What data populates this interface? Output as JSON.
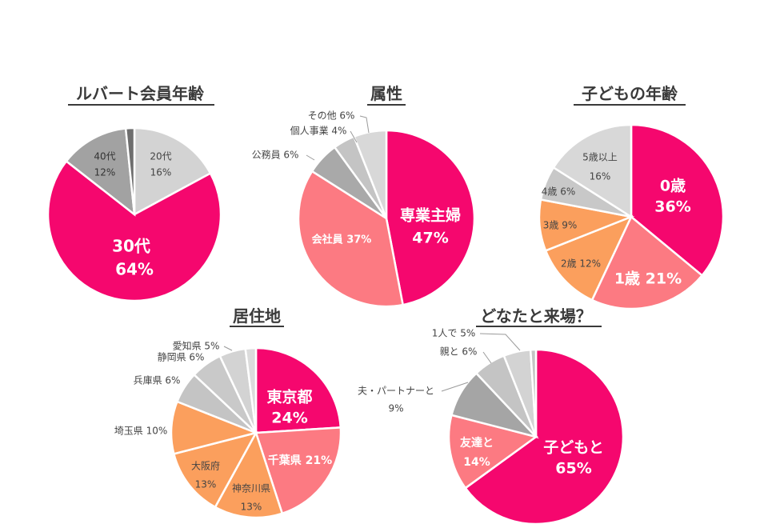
{
  "chart_data": [
    {
      "type": "pie",
      "title": "ルバート会員年齢",
      "slices": [
        {
          "label": "20代",
          "value": 16,
          "display": "16%",
          "color": "#d3d3d3"
        },
        {
          "label": "30代",
          "value": 64,
          "display": "64%",
          "color": "#f5076e"
        },
        {
          "label": "40代",
          "value": 12,
          "display": "12%",
          "color": "#a2a2a2"
        },
        {
          "label": "",
          "value": 1.5,
          "display": "",
          "color": "#6e6e6e"
        }
      ]
    },
    {
      "type": "pie",
      "title": "属性",
      "slices": [
        {
          "label": "専業主婦",
          "value": 47,
          "display": "47%",
          "color": "#f5076e"
        },
        {
          "label": "会社員",
          "value": 37,
          "display": "37%",
          "color": "#fc7a82"
        },
        {
          "label": "公務員",
          "value": 6,
          "display": "6%",
          "color": "#a9a9a9"
        },
        {
          "label": "個人事業",
          "value": 4,
          "display": "4%",
          "color": "#c4c4c4"
        },
        {
          "label": "その他",
          "value": 6,
          "display": "6%",
          "color": "#d8d8d8"
        }
      ]
    },
    {
      "type": "pie",
      "title": "子どもの年齢",
      "slices": [
        {
          "label": "0歳",
          "value": 36,
          "display": "36%",
          "color": "#f5076e"
        },
        {
          "label": "1歳",
          "value": 21,
          "display": "21%",
          "color": "#fc7a82"
        },
        {
          "label": "2歳",
          "value": 12,
          "display": "12%",
          "color": "#fb9f5d"
        },
        {
          "label": "3歳",
          "value": 9,
          "display": "9%",
          "color": "#fb9f5d"
        },
        {
          "label": "4歳",
          "value": 6,
          "display": "6%",
          "color": "#c8c8c8"
        },
        {
          "label": "5歳以上",
          "value": 16,
          "display": "16%",
          "color": "#d8d8d8"
        }
      ]
    },
    {
      "type": "pie",
      "title": "居住地",
      "slices": [
        {
          "label": "東京都",
          "value": 24,
          "display": "24%",
          "color": "#f5076e"
        },
        {
          "label": "千葉県",
          "value": 21,
          "display": "21%",
          "color": "#fc7a82"
        },
        {
          "label": "神奈川県",
          "value": 13,
          "display": "13%",
          "color": "#fb9f5d"
        },
        {
          "label": "大阪府",
          "value": 13,
          "display": "13%",
          "color": "#fb9f5d"
        },
        {
          "label": "埼玉県",
          "value": 10,
          "display": "10%",
          "color": "#fb9f5d"
        },
        {
          "label": "兵庫県",
          "value": 6,
          "display": "6%",
          "color": "#c4c4c4"
        },
        {
          "label": "静岡県",
          "value": 6,
          "display": "6%",
          "color": "#c9c9c9"
        },
        {
          "label": "愛知県",
          "value": 5,
          "display": "5%",
          "color": "#d3d3d3"
        },
        {
          "label": "",
          "value": 2,
          "display": "",
          "color": "#dcdcdc"
        }
      ]
    },
    {
      "type": "pie",
      "title": "どなたと来場？",
      "slices": [
        {
          "label": "子どもと",
          "value": 65,
          "display": "65%",
          "color": "#f5076e"
        },
        {
          "label": "友達と",
          "value": 14,
          "display": "14%",
          "color": "#fc7a82"
        },
        {
          "label": "夫・パートナーと",
          "value": 9,
          "display": "9%",
          "color": "#a5a5a5"
        },
        {
          "label": "親と",
          "value": 6,
          "display": "6%",
          "color": "#c4c4c4"
        },
        {
          "label": "1人で",
          "value": 5,
          "display": "5%",
          "color": "#d3d3d3"
        },
        {
          "label": "",
          "value": 1,
          "display": "",
          "color": "#c4c4c4"
        }
      ]
    }
  ]
}
